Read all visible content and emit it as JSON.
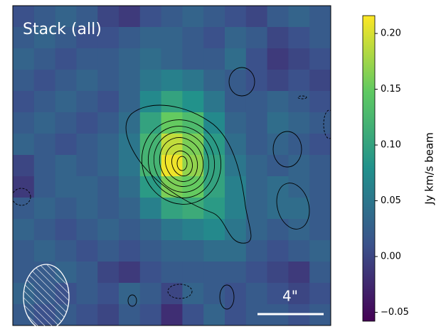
{
  "chart_data": {
    "type": "heatmap",
    "title": "Stack (all)",
    "scale_label": "4\"",
    "colorbar_label": "Jy km/s beam",
    "colormap": "viridis",
    "zlim": [
      -0.058,
      0.216
    ],
    "zticks": [
      {
        "value": -0.05,
        "label": "−0.05"
      },
      {
        "value": 0,
        "label": "0.00"
      },
      0.05,
      {
        "value": 0.1,
        "label": "0.10"
      },
      0.15,
      {
        "value": 0.2,
        "label": "0.20"
      }
    ],
    "z": [
      [
        0.01,
        0.02,
        0.03,
        0.02,
        0.0,
        -0.01,
        0.01,
        0.02,
        0.03,
        0.02,
        0.01,
        0.0,
        0.02,
        0.03,
        0.02
      ],
      [
        0.02,
        0.03,
        0.02,
        0.01,
        0.01,
        0.02,
        0.03,
        0.03,
        0.02,
        0.01,
        0.03,
        0.02,
        0.0,
        0.01,
        0.02
      ],
      [
        0.03,
        0.02,
        0.01,
        0.02,
        0.02,
        0.03,
        0.04,
        0.03,
        0.02,
        0.02,
        0.04,
        0.01,
        -0.01,
        0.0,
        0.01
      ],
      [
        0.02,
        0.01,
        0.02,
        0.03,
        0.02,
        0.03,
        0.05,
        0.06,
        0.05,
        0.03,
        0.02,
        0.01,
        0.0,
        0.01,
        0.0
      ],
      [
        0.01,
        0.02,
        0.03,
        0.02,
        0.01,
        0.03,
        0.07,
        0.1,
        0.08,
        0.05,
        0.02,
        0.02,
        0.03,
        0.02,
        0.01
      ],
      [
        0.02,
        0.03,
        0.02,
        0.01,
        0.02,
        0.04,
        0.1,
        0.15,
        0.13,
        0.07,
        0.03,
        0.02,
        0.04,
        0.03,
        0.02
      ],
      [
        0.03,
        0.02,
        0.01,
        0.02,
        0.03,
        0.05,
        0.12,
        0.19,
        0.16,
        0.09,
        0.04,
        0.02,
        0.03,
        0.02,
        0.01
      ],
      [
        0.0,
        0.02,
        0.03,
        0.02,
        0.03,
        0.05,
        0.12,
        0.21,
        0.17,
        0.1,
        0.05,
        0.03,
        0.02,
        0.03,
        0.02
      ],
      [
        -0.01,
        0.02,
        0.03,
        0.03,
        0.02,
        0.04,
        0.09,
        0.16,
        0.15,
        0.1,
        0.06,
        0.03,
        0.04,
        0.03,
        0.02
      ],
      [
        0.02,
        0.03,
        0.02,
        0.03,
        0.02,
        0.03,
        0.06,
        0.1,
        0.11,
        0.09,
        0.06,
        0.03,
        0.04,
        0.04,
        0.02
      ],
      [
        0.03,
        0.02,
        0.01,
        0.02,
        0.03,
        0.02,
        0.03,
        0.05,
        0.06,
        0.07,
        0.05,
        0.03,
        0.02,
        0.03,
        0.02
      ],
      [
        0.02,
        0.03,
        0.02,
        0.01,
        0.02,
        0.01,
        0.02,
        0.03,
        0.03,
        0.04,
        0.04,
        0.02,
        0.01,
        0.02,
        0.03
      ],
      [
        0.02,
        0.02,
        0.03,
        0.02,
        0.0,
        -0.01,
        0.01,
        0.02,
        0.02,
        0.02,
        0.02,
        0.01,
        0.0,
        -0.01,
        0.02
      ],
      [
        0.03,
        0.02,
        0.01,
        0.02,
        0.01,
        0.03,
        0.02,
        0.0,
        0.03,
        0.02,
        0.01,
        0.02,
        0.01,
        0.0,
        0.01
      ],
      [
        0.02,
        0.01,
        0.02,
        0.01,
        0.0,
        0.02,
        0.01,
        -0.02,
        0.01,
        0.03,
        0.01,
        0.02,
        0.02,
        0.01,
        0.02
      ]
    ]
  }
}
